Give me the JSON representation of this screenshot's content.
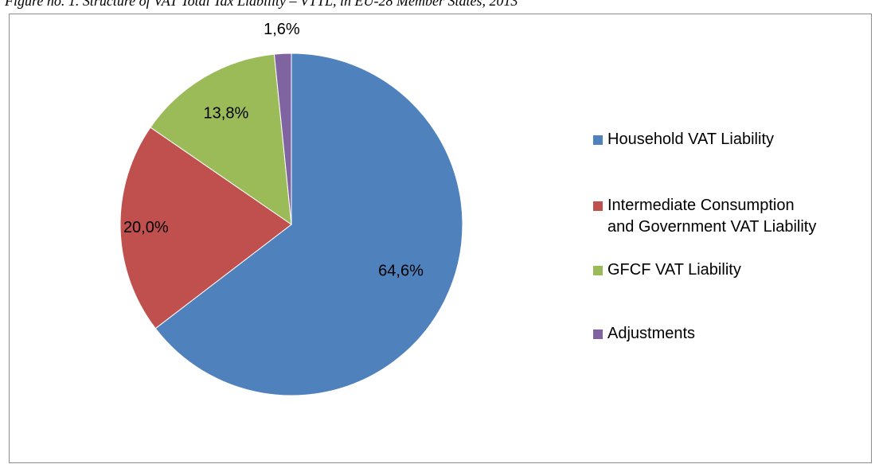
{
  "figure_caption": "Figure no. 1. Structure of VAT Total Tax Liability – VTTL, in EU-28 Member States, 2013",
  "chart_data": {
    "type": "pie",
    "title": "",
    "slices": [
      {
        "name": "Household VAT Liability",
        "value": 64.6,
        "label": "64,6%",
        "color": "#4F81BD"
      },
      {
        "name": "Intermediate Consumption\nand Government VAT Liability",
        "value": 20.0,
        "label": "20,0%",
        "color": "#C0504D"
      },
      {
        "name": "GFCF VAT  Liability",
        "value": 13.8,
        "label": "13,8%",
        "color": "#9BBB59"
      },
      {
        "name": "Adjustments",
        "value": 1.6,
        "label": "1,6%",
        "color": "#8064A2"
      }
    ],
    "start_angle": "12 o'clock",
    "direction": "clockwise",
    "legend_position": "right"
  }
}
